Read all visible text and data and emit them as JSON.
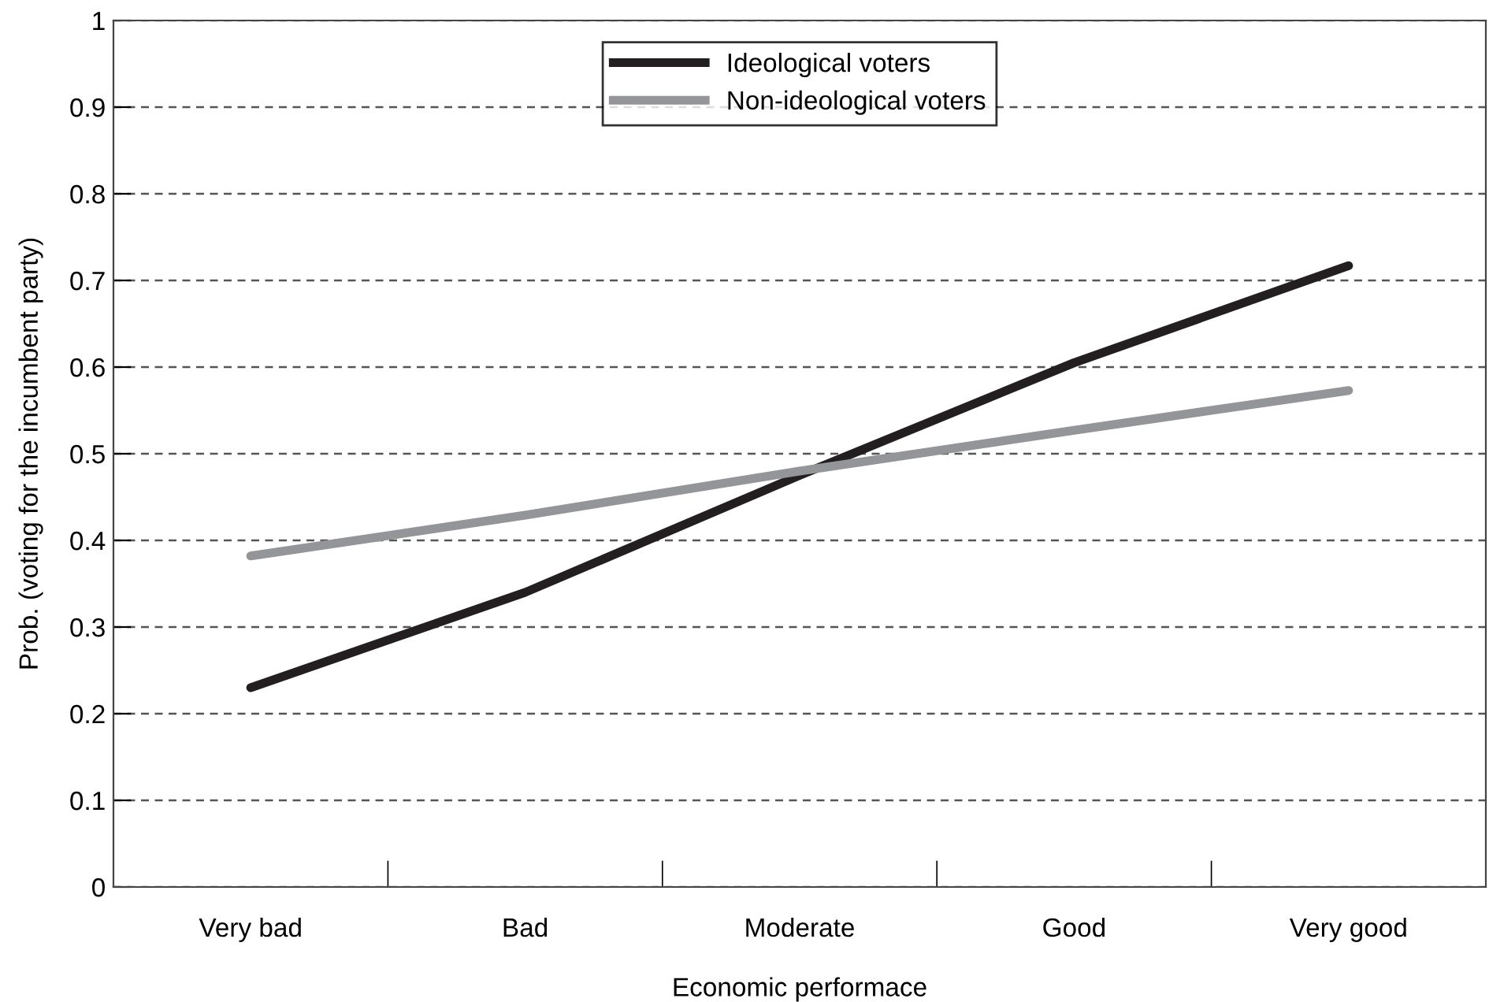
{
  "chart_data": {
    "type": "line",
    "xlabel": "Economic performace",
    "ylabel": "Prob. (voting for the incumbent party)",
    "categories": [
      "Very bad",
      "Bad",
      "Moderate",
      "Good",
      "Very good"
    ],
    "series": [
      {
        "name": "Ideological voters",
        "color": "#231f20",
        "values": [
          0.23,
          0.34,
          0.475,
          0.605,
          0.717
        ]
      },
      {
        "name": "Non-ideological voters",
        "color": "#939598",
        "values": [
          0.382,
          0.429,
          0.48,
          0.527,
          0.573
        ]
      }
    ],
    "ylim": [
      0,
      1
    ],
    "yticks": [
      0,
      0.1,
      0.2,
      0.3,
      0.4,
      0.5,
      0.6,
      0.7,
      0.8,
      0.9,
      1
    ],
    "grid": "y",
    "legend": "top",
    "marker": "none",
    "line_style": "solid"
  }
}
